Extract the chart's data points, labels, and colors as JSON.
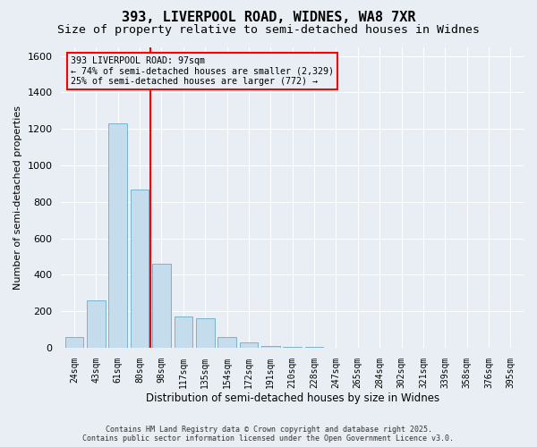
{
  "title": "393, LIVERPOOL ROAD, WIDNES, WA8 7XR",
  "subtitle": "Size of property relative to semi-detached houses in Widnes",
  "xlabel": "Distribution of semi-detached houses by size in Widnes",
  "ylabel": "Number of semi-detached properties",
  "categories": [
    "24sqm",
    "43sqm",
    "61sqm",
    "80sqm",
    "98sqm",
    "117sqm",
    "135sqm",
    "154sqm",
    "172sqm",
    "191sqm",
    "210sqm",
    "228sqm",
    "247sqm",
    "265sqm",
    "284sqm",
    "302sqm",
    "321sqm",
    "339sqm",
    "358sqm",
    "376sqm",
    "395sqm"
  ],
  "values": [
    60,
    260,
    1230,
    870,
    460,
    170,
    160,
    60,
    30,
    10,
    5,
    3,
    2,
    1,
    1,
    0,
    0,
    0,
    0,
    0,
    0
  ],
  "bar_color": "#c5dcec",
  "bar_edgecolor": "#7ab3d0",
  "red_line_index": 4,
  "annotation_text": "393 LIVERPOOL ROAD: 97sqm\n← 74% of semi-detached houses are smaller (2,329)\n25% of semi-detached houses are larger (772) →",
  "ylim": [
    0,
    1650
  ],
  "yticks": [
    0,
    200,
    400,
    600,
    800,
    1000,
    1200,
    1400,
    1600
  ],
  "footer1": "Contains HM Land Registry data © Crown copyright and database right 2025.",
  "footer2": "Contains public sector information licensed under the Open Government Licence v3.0.",
  "bg_color": "#e8eef4",
  "plot_bg_color": "#e8eef4",
  "title_fontsize": 11,
  "subtitle_fontsize": 9.5
}
